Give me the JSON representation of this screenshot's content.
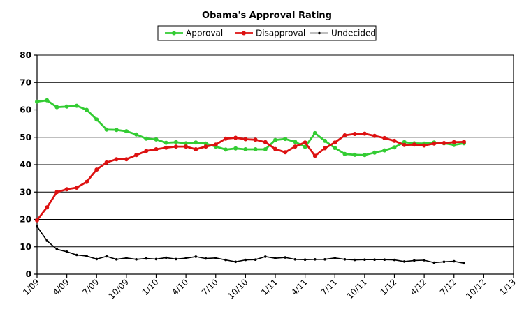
{
  "chart_data": {
    "type": "line",
    "title": "Obama's Approval Rating",
    "xlabel": "",
    "ylabel": "",
    "ylim": [
      0,
      80
    ],
    "yticks": [
      0,
      10,
      20,
      30,
      40,
      50,
      60,
      70,
      80
    ],
    "xticks": [
      "1/09",
      "4/09",
      "7/09",
      "10/09",
      "1/10",
      "4/10",
      "7/10",
      "10/10",
      "1/11",
      "4/11",
      "7/11",
      "10/11",
      "1/12",
      "4/12",
      "7/12",
      "10/12",
      "1/13"
    ],
    "grid": true,
    "legend_position": "top",
    "series": [
      {
        "name": "Approval",
        "color": "#33cc33",
        "marker": "circle",
        "values": [
          63.0,
          63.5,
          61.0,
          61.2,
          61.5,
          60.0,
          56.5,
          52.8,
          52.7,
          52.2,
          51.0,
          49.5,
          49.2,
          48.0,
          48.2,
          47.8,
          48.1,
          47.7,
          46.6,
          45.5,
          45.9,
          45.6,
          45.6,
          45.6,
          49.0,
          49.4,
          48.3,
          46.5,
          51.5,
          48.7,
          46.1,
          43.9,
          43.6,
          43.5,
          44.4,
          45.2,
          46.3,
          48.2,
          47.8,
          47.7,
          48.1,
          47.8,
          47.2,
          47.8
        ]
      },
      {
        "name": "Disapproval",
        "color": "#dd1111",
        "marker": "circle",
        "values": [
          19.7,
          24.4,
          30.0,
          31.0,
          31.6,
          33.7,
          38.2,
          40.8,
          42.0,
          42.0,
          43.5,
          45.0,
          45.6,
          46.2,
          46.6,
          46.6,
          45.6,
          46.6,
          47.3,
          49.5,
          49.8,
          49.3,
          49.1,
          48.2,
          45.7,
          44.5,
          46.6,
          48.1,
          43.2,
          46.0,
          48.1,
          50.7,
          51.2,
          51.3,
          50.5,
          49.7,
          48.7,
          47.2,
          47.3,
          47.0,
          47.7,
          47.9,
          48.2,
          48.3
        ]
      },
      {
        "name": "Undecided",
        "color": "#000000",
        "marker": "small-dot",
        "values": [
          17.4,
          12.2,
          9.1,
          8.2,
          7.0,
          6.6,
          5.5,
          6.5,
          5.4,
          5.9,
          5.4,
          5.7,
          5.5,
          6.0,
          5.5,
          5.8,
          6.4,
          5.7,
          5.9,
          5.2,
          4.5,
          5.2,
          5.3,
          6.4,
          5.8,
          6.1,
          5.4,
          5.3,
          5.4,
          5.4,
          5.9,
          5.4,
          5.2,
          5.3,
          5.3,
          5.3,
          5.2,
          4.6,
          5.0,
          5.1,
          4.2,
          4.5,
          4.7,
          4.0
        ]
      }
    ]
  }
}
